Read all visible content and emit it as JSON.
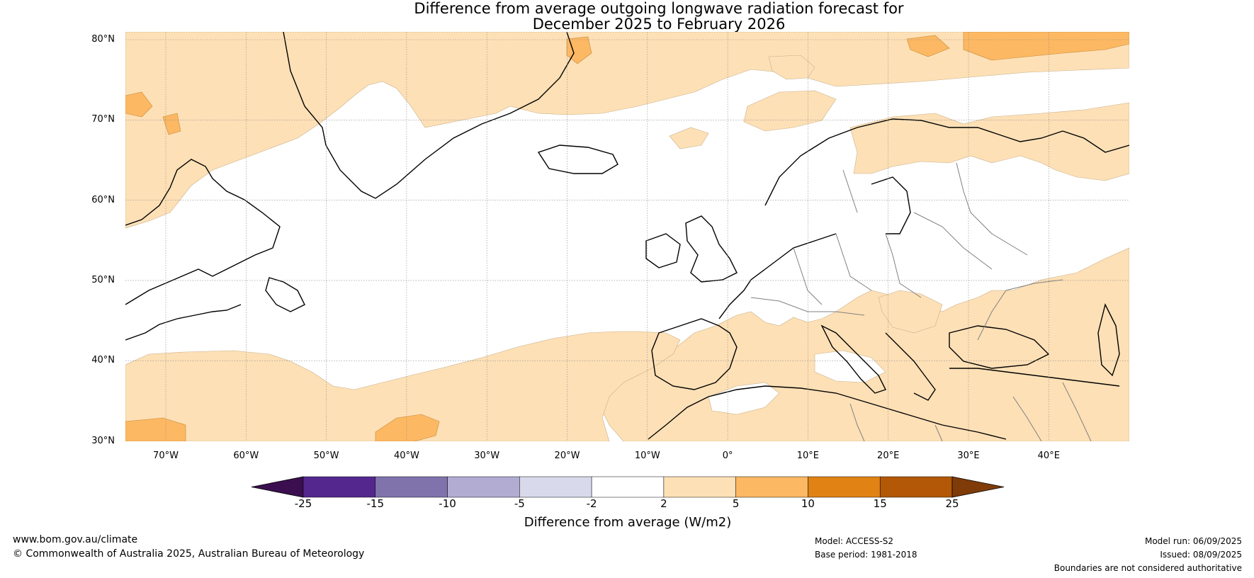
{
  "title": {
    "line1": "Difference from average outgoing longwave radiation forecast for",
    "line2": "December 2025 to February 2026"
  },
  "map": {
    "lat_labels": [
      "80°N",
      "70°N",
      "60°N",
      "50°N",
      "40°N",
      "30°N"
    ],
    "lon_labels": [
      "70°W",
      "60°W",
      "50°W",
      "40°W",
      "30°W",
      "20°W",
      "10°W",
      "0°",
      "10°E",
      "20°E",
      "30°E",
      "40°E"
    ],
    "extent": {
      "lon_min": -75,
      "lon_max": 50,
      "lat_min": 30,
      "lat_max": 81
    }
  },
  "legend": {
    "title": "Difference from average (W/m2)",
    "tick_labels": [
      "-25",
      "-15",
      "-10",
      "-5",
      "-2",
      "2",
      "5",
      "10",
      "15",
      "25"
    ],
    "colors": [
      "#3b0f4f",
      "#54278f",
      "#8073ac",
      "#b2abd2",
      "#d8daeb",
      "#ffffff",
      "#fee0b6",
      "#fdb863",
      "#e08214",
      "#b35806",
      "#7f3b08"
    ]
  },
  "footer": {
    "website": "www.bom.gov.au/climate",
    "copyright": "© Commonwealth of Australia 2025, Australian Bureau of Meteorology",
    "model": "Model: ACCESS-S2",
    "base_period": "Base period: 1981-2018",
    "model_run": "Model run: 06/09/2025",
    "issued": "Issued: 08/09/2025",
    "disclaimer": "Boundaries are not considered authoritative"
  }
}
